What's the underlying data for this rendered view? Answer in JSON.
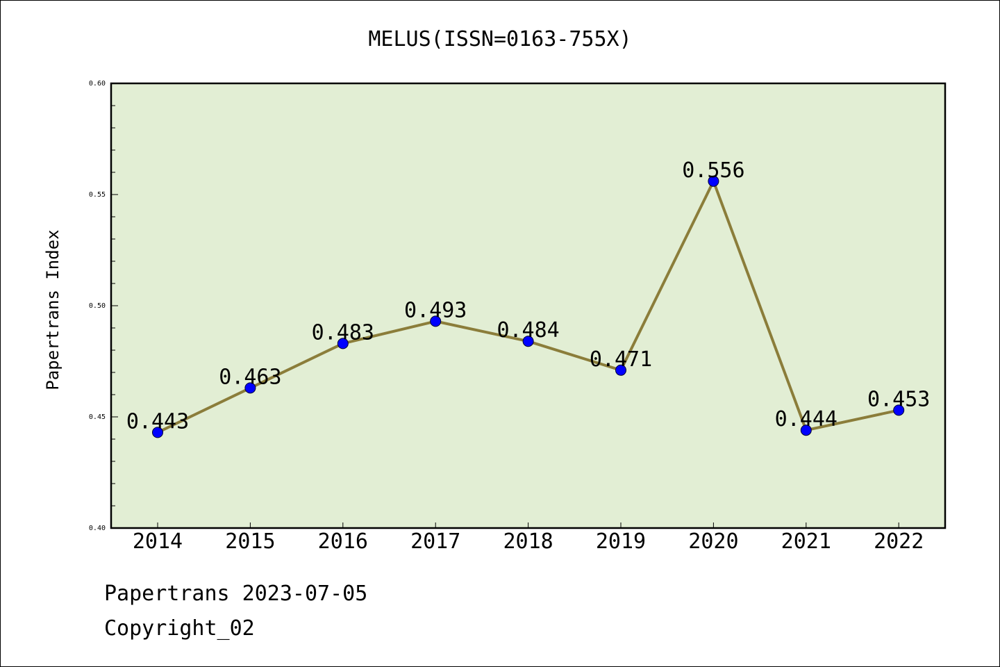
{
  "chart_data": {
    "type": "line",
    "title": "MELUS(ISSN=0163-755X)",
    "ylabel": "Papertrans Index",
    "xlabel": "",
    "categories": [
      "2014",
      "2015",
      "2016",
      "2017",
      "2018",
      "2019",
      "2020",
      "2021",
      "2022"
    ],
    "series": [
      {
        "values": [
          0.443,
          0.463,
          0.483,
          0.493,
          0.484,
          0.471,
          0.556,
          0.444,
          0.453
        ]
      }
    ],
    "data_labels": [
      "0.443",
      "0.463",
      "0.483",
      "0.493",
      "0.484",
      "0.471",
      "0.556",
      "0.444",
      "0.453"
    ],
    "ylim": [
      0.4,
      0.6
    ],
    "y_ticks": [
      "0.40",
      "0.45",
      "0.50",
      "0.55",
      "0.60"
    ],
    "grid": false,
    "colors": {
      "plot_background": "#e2eed4",
      "line": "#8b7d3a",
      "marker": "#0000ff",
      "frame": "#000000"
    }
  },
  "footer": {
    "line1": "Papertrans 2023-07-05",
    "line2": "Copyright_02"
  }
}
